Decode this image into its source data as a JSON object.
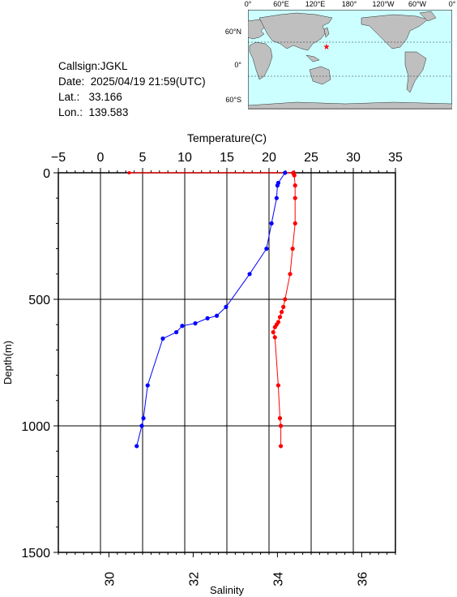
{
  "info": {
    "callsign": "Callsign:JGKL",
    "date": "Date:  2025/04/19 21:59(UTC)",
    "lat": "Lat.:   33.166",
    "lon": "Lon.:  139.583"
  },
  "map": {
    "lon_labels": [
      "0°",
      "60°E",
      "120°E",
      "180°",
      "120°W",
      "60°W",
      "0°"
    ],
    "lat_labels": [
      "60°N",
      "0°",
      "60°S"
    ],
    "station": {
      "lat": 33.166,
      "lon": 139.583
    },
    "colors": {
      "ocean": "#ccffff",
      "land": "#bfbfbf",
      "marker": "#ff0000"
    }
  },
  "chart_data": {
    "type": "line",
    "title": "",
    "ylabel": "Depth(m)",
    "ylim": [
      1500,
      0
    ],
    "yticks": [
      0,
      500,
      1000,
      1500
    ],
    "top_axis": {
      "label": "Temperature(C)",
      "range": [
        -5,
        35
      ],
      "ticks": [
        -5,
        0,
        5,
        10,
        15,
        20,
        25,
        30,
        35
      ]
    },
    "bottom_axis": {
      "label": "Salinity",
      "range": [
        28.8,
        36.8
      ],
      "ticks": [
        30,
        32,
        34,
        36
      ]
    },
    "grid": true,
    "series": [
      {
        "axis": "temperature",
        "color": "#ff0000",
        "depth": [
          0,
          3,
          10,
          50,
          100,
          200,
          300,
          400,
          500,
          530,
          550,
          570,
          590,
          600,
          610,
          630,
          650,
          840,
          970,
          1000,
          1080
        ],
        "values": [
          22.9,
          22.9,
          23.0,
          23.1,
          23.1,
          23.1,
          22.8,
          22.5,
          21.9,
          21.7,
          21.5,
          21.3,
          21.1,
          20.9,
          20.7,
          20.5,
          20.7,
          21.1,
          21.3,
          21.4,
          21.4
        ],
        "surface_line": {
          "depth": 0,
          "from": 3.4,
          "to": 22.9
        }
      },
      {
        "axis": "salinity",
        "color": "#0000ff",
        "depth": [
          0,
          40,
          50,
          100,
          200,
          300,
          400,
          530,
          565,
          575,
          595,
          605,
          630,
          655,
          840,
          970,
          1000,
          1080
        ],
        "values": [
          34.18,
          34.02,
          34.0,
          33.98,
          33.86,
          33.74,
          33.34,
          32.78,
          32.56,
          32.34,
          32.05,
          31.74,
          31.6,
          31.28,
          30.92,
          30.82,
          30.78,
          30.66
        ]
      }
    ]
  }
}
